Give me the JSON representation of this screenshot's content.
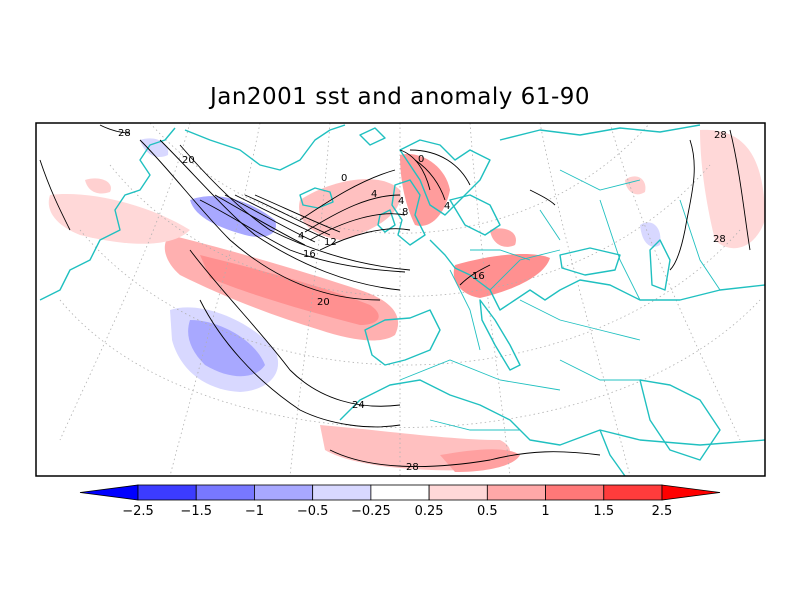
{
  "title": "Jan2001 sst and anomaly 61-90",
  "colors": {
    "coast": "#20c0c0",
    "grid": "#b0b0b0",
    "contour": "#000000",
    "frame": "#000000"
  },
  "contour_labels": [
    "28",
    "20",
    "0",
    "4",
    "4",
    "8",
    "4",
    "4",
    "12",
    "16",
    "20",
    "24",
    "28",
    "16",
    "28",
    "28",
    "0"
  ],
  "colorbar": {
    "bins": [
      {
        "color": "#0000ff"
      },
      {
        "color": "#3c3cff"
      },
      {
        "color": "#7878ff"
      },
      {
        "color": "#a8a8ff"
      },
      {
        "color": "#d8d8ff"
      },
      {
        "color": "#ffffff"
      },
      {
        "color": "#ffd8d8"
      },
      {
        "color": "#ffa8a8"
      },
      {
        "color": "#ff7878"
      },
      {
        "color": "#ff3c3c"
      },
      {
        "color": "#ff0000"
      }
    ],
    "tick_labels": [
      "−2.5",
      "−1.5",
      "−1",
      "−0.5",
      "−0.25",
      "0.25",
      "0.5",
      "1",
      "1.5",
      "2.5"
    ]
  }
}
